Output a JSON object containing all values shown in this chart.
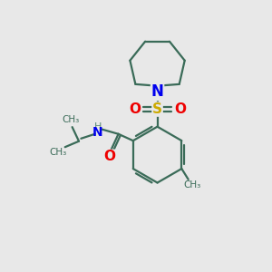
{
  "bg_color": "#e8e8e8",
  "bond_color": "#3a6b58",
  "N_color": "#0000ee",
  "O_color": "#ee0000",
  "S_color": "#ccaa00",
  "NH_color": "#5a8a78",
  "line_width": 1.6,
  "figsize": [
    3.0,
    3.0
  ],
  "dpi": 100,
  "xlim": [
    0,
    10
  ],
  "ylim": [
    0,
    10
  ]
}
